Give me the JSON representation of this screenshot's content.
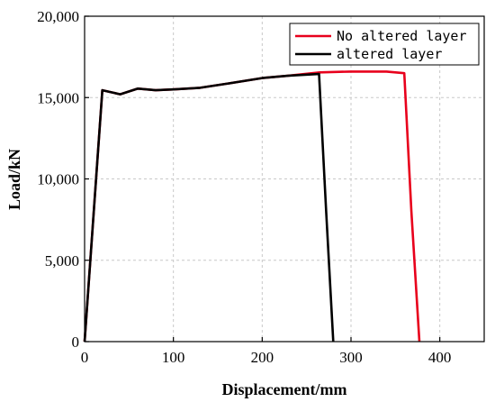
{
  "chart_data": {
    "type": "line",
    "xlabel": "Displacement/mm",
    "ylabel": "Load/kN",
    "xlim": [
      0,
      450
    ],
    "ylim": [
      0,
      20000
    ],
    "x_ticks": [
      0,
      100,
      200,
      300,
      400
    ],
    "y_ticks": [
      0,
      5000,
      10000,
      15000,
      20000
    ],
    "x_tick_labels": [
      "0",
      "100",
      "200",
      "300",
      "400"
    ],
    "y_tick_labels": [
      "0",
      "5,000",
      "10,000",
      "15,000",
      "20,000"
    ],
    "grid": true,
    "legend_position": "top-right",
    "series": [
      {
        "name": "No altered layer",
        "color": "#e8001c",
        "x": [
          0,
          20,
          40,
          60,
          80,
          100,
          130,
          160,
          200,
          230,
          265,
          300,
          340,
          360,
          368,
          377
        ],
        "y": [
          0,
          15450,
          15200,
          15550,
          15450,
          15500,
          15600,
          15850,
          16200,
          16350,
          16550,
          16600,
          16600,
          16500,
          8000,
          0
        ]
      },
      {
        "name": "altered layer",
        "color": "#000000",
        "x": [
          0,
          20,
          40,
          60,
          80,
          100,
          130,
          160,
          200,
          230,
          264,
          272,
          280
        ],
        "y": [
          0,
          15450,
          15200,
          15550,
          15450,
          15500,
          15600,
          15850,
          16200,
          16350,
          16450,
          8000,
          0
        ]
      }
    ]
  }
}
